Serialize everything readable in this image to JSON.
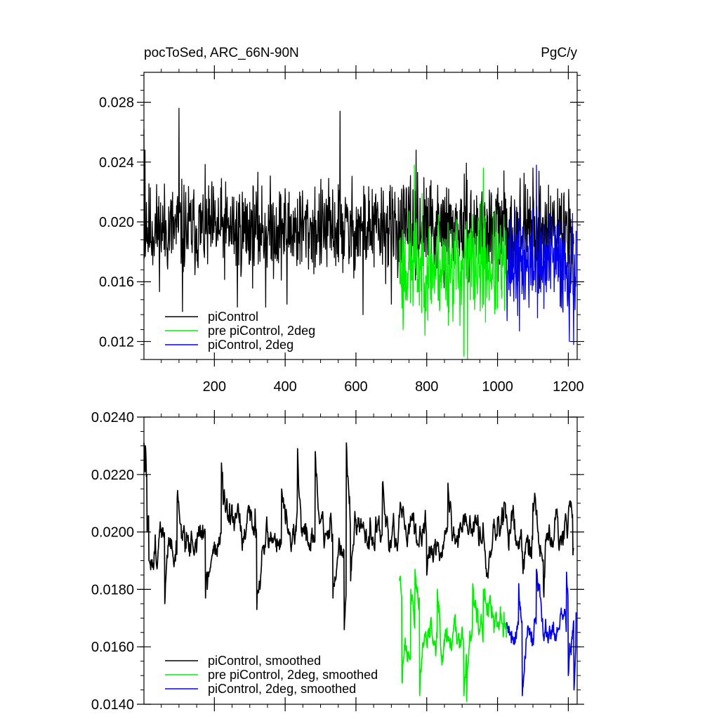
{
  "chart_data": [
    {
      "type": "line",
      "title_left": "pocToSed, ARC_66N-90N",
      "title_right": "PgC/y",
      "xlim": [
        1,
        1225
      ],
      "ylim": [
        0.0108,
        0.03
      ],
      "xticks": [
        200,
        400,
        600,
        800,
        1000,
        1200
      ],
      "xtick_labels": [
        "200",
        "400",
        "600",
        "800",
        "1000",
        "1200"
      ],
      "yticks": [
        0.012,
        0.016,
        0.02,
        0.024,
        0.028
      ],
      "ytick_labels": [
        "0.012",
        "0.016",
        "0.020",
        "0.024",
        "0.028"
      ],
      "legend_position": "bottom-left",
      "series": [
        {
          "name": "piControl",
          "color": "#000000",
          "x_start": 1,
          "x_end": 1215,
          "mean": 0.0195,
          "spread": 0.0019,
          "seed": 11,
          "points": [
            [
              1,
              0.0262
            ],
            [
              4,
              0.0248
            ],
            [
              8,
              0.0213
            ],
            [
              12,
              0.0186
            ],
            [
              100,
              0.0276
            ],
            [
              110,
              0.014
            ],
            [
              265,
              0.0143
            ],
            [
              345,
              0.0143
            ],
            [
              405,
              0.0145
            ],
            [
              555,
              0.0274
            ],
            [
              580,
              0.0172
            ],
            [
              620,
              0.0138
            ],
            [
              700,
              0.0145
            ],
            [
              770,
              0.0248
            ],
            [
              1100,
              0.0236
            ]
          ]
        },
        {
          "name": "pre piControl, 2deg",
          "color": "#00ee00",
          "x_start": 723,
          "x_end": 1025,
          "mean": 0.017,
          "spread": 0.0022,
          "seed": 23,
          "points": [
            [
              723,
              0.0188
            ],
            [
              733,
              0.0128
            ],
            [
              765,
              0.0238
            ],
            [
              905,
              0.011
            ],
            [
              915,
              0.0106
            ],
            [
              930,
              0.0205
            ],
            [
              960,
              0.0236
            ]
          ]
        },
        {
          "name": "piControl, 2deg",
          "color": "#0000ee",
          "x_start": 1025,
          "x_end": 1222,
          "mean": 0.0172,
          "spread": 0.0021,
          "seed": 37,
          "points": [
            [
              1025,
              0.0195
            ],
            [
              1062,
              0.0127
            ],
            [
              1110,
              0.0238
            ],
            [
              1203,
              0.012
            ],
            [
              1215,
              0.0118
            ],
            [
              1222,
              0.0194
            ]
          ]
        }
      ]
    },
    {
      "type": "line",
      "xlim": [
        1,
        1225
      ],
      "ylim": [
        0.014,
        0.024
      ],
      "xticks": [
        200,
        400,
        600,
        800,
        1000,
        1200
      ],
      "yticks": [
        0.014,
        0.016,
        0.018,
        0.02,
        0.022,
        0.024
      ],
      "ytick_labels": [
        "0.0140",
        "0.0160",
        "0.0180",
        "0.0200",
        "0.0220",
        "0.0240"
      ],
      "legend_position": "bottom-left",
      "series": [
        {
          "name": "piControl, smoothed",
          "color": "#000000",
          "x_start": 1,
          "x_end": 1215,
          "mean": 0.0198,
          "spread": 0.0009,
          "seed": 51,
          "points": [
            [
              1,
              0.0231
            ],
            [
              5,
              0.023
            ],
            [
              10,
              0.02
            ],
            [
              15,
              0.019
            ],
            [
              60,
              0.0175
            ],
            [
              95,
              0.0212
            ],
            [
              175,
              0.0177
            ],
            [
              180,
              0.018
            ],
            [
              220,
              0.0224
            ],
            [
              315,
              0.0208
            ],
            [
              320,
              0.0173
            ],
            [
              390,
              0.0215
            ],
            [
              435,
              0.0229
            ],
            [
              485,
              0.0228
            ],
            [
              535,
              0.0177
            ],
            [
              567,
              0.0166
            ],
            [
              573,
              0.0231
            ],
            [
              578,
              0.0218
            ],
            [
              585,
              0.0183
            ],
            [
              610,
              0.02
            ],
            [
              675,
              0.0217
            ],
            [
              800,
              0.0185
            ],
            [
              860,
              0.0217
            ],
            [
              1000,
              0.0205
            ],
            [
              1018,
              0.021
            ],
            [
              1100,
              0.021
            ],
            [
              1130,
              0.018
            ],
            [
              1200,
              0.0206
            ],
            [
              1213,
              0.0192
            ]
          ]
        },
        {
          "name": "pre piControl, 2deg, smoothed",
          "color": "#00ee00",
          "x_start": 723,
          "x_end": 1025,
          "mean": 0.0168,
          "spread": 0.0009,
          "seed": 63,
          "points": [
            [
              723,
              0.0183
            ],
            [
              730,
              0.0148
            ],
            [
              745,
              0.0155
            ],
            [
              755,
              0.018
            ],
            [
              767,
              0.0187
            ],
            [
              780,
              0.0143
            ],
            [
              830,
              0.018
            ],
            [
              905,
              0.0143
            ],
            [
              913,
              0.0141
            ],
            [
              930,
              0.0182
            ],
            [
              960,
              0.018
            ],
            [
              990,
              0.0165
            ],
            [
              1018,
              0.0172
            ]
          ]
        },
        {
          "name": "piControl, 2deg, smoothed",
          "color": "#0000ee",
          "x_start": 1025,
          "x_end": 1222,
          "mean": 0.0168,
          "spread": 0.0008,
          "seed": 79,
          "points": [
            [
              1025,
              0.0168
            ],
            [
              1060,
              0.0182
            ],
            [
              1070,
              0.0143
            ],
            [
              1110,
              0.0187
            ],
            [
              1195,
              0.0186
            ],
            [
              1200,
              0.015
            ],
            [
              1216,
              0.0145
            ],
            [
              1222,
              0.0172
            ]
          ]
        }
      ]
    }
  ]
}
